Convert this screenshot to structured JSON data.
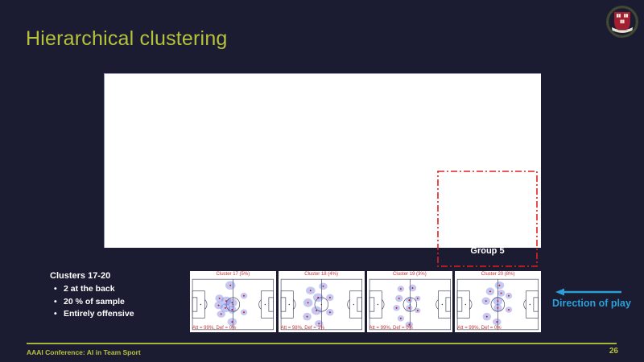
{
  "slide": {
    "title": "Hierarchical clustering",
    "footer": "AAAI Conference: AI in Team Sport",
    "page_number": "26"
  },
  "logo": {
    "name": "harvard-crest",
    "banner_text": "HARVARD"
  },
  "annotation": {
    "group_label": "Group 5",
    "direction_label": "Direction of play"
  },
  "notes": {
    "heading": "Clusters 17-20",
    "bullets": [
      "2 at the back",
      "20 % of sample",
      "Entirely offensive"
    ]
  },
  "colors": {
    "background": "#1b1b31",
    "accent_yellow": "#b6c23c",
    "annotation_red": "#e02020",
    "direction_blue": "#2d9fd8",
    "blob_blue": "#5058d8",
    "panel_text_red": "#c23434",
    "harvard_crimson": "#a41e32"
  },
  "chart_data": {
    "type": "heatmap",
    "description": "Four soccer-pitch player-position heatmaps, blue density blobs with red centroids, attack direction left",
    "panels": [
      {
        "title": "Cluster 17 (5%)",
        "stats": "Att = 99%, Def = 0%",
        "blobs": [
          [
            47,
            9,
            6,
            5
          ],
          [
            63,
            21,
            4,
            3.5
          ],
          [
            34,
            24,
            5,
            4.5
          ],
          [
            42,
            27,
            6,
            5
          ],
          [
            49,
            29,
            6,
            5
          ],
          [
            33,
            32,
            5,
            4.5
          ],
          [
            41,
            35,
            6,
            5
          ],
          [
            49,
            37,
            5,
            4.5
          ],
          [
            63,
            40,
            4,
            3.5
          ],
          [
            36,
            42,
            5,
            4
          ],
          [
            49,
            51,
            5.5,
            4.5
          ]
        ]
      },
      {
        "title": "Cluster 18 (4%)",
        "stats": "Att = 98%, Def = 1%",
        "blobs": [
          [
            52,
            10,
            5,
            4
          ],
          [
            37,
            15,
            5.5,
            4.5
          ],
          [
            46,
            23,
            6,
            5
          ],
          [
            60,
            23,
            4.5,
            4
          ],
          [
            34,
            29,
            5.5,
            5
          ],
          [
            44,
            38,
            6,
            5
          ],
          [
            60,
            40,
            4.5,
            4
          ],
          [
            33,
            45,
            5,
            4.5
          ],
          [
            47,
            53,
            5,
            4
          ]
        ]
      },
      {
        "title": "Cluster 19 (3%)",
        "stats": "Att = 99%, Def = 0%",
        "blobs": [
          [
            39,
            13,
            4,
            3.5
          ],
          [
            53,
            12,
            4.5,
            4
          ],
          [
            37,
            24,
            4.5,
            4
          ],
          [
            49,
            26,
            4,
            3.5
          ],
          [
            59,
            24,
            3.5,
            3
          ],
          [
            34,
            35,
            4,
            3.5
          ],
          [
            49,
            35,
            4,
            3.5
          ],
          [
            59,
            38,
            3.5,
            3
          ],
          [
            39,
            47,
            4,
            3.5
          ],
          [
            49,
            54,
            4.5,
            3.5
          ]
        ]
      },
      {
        "title": "Cluster 20 (8%)",
        "stats": "Att = 99%, Def = 0%",
        "blobs": [
          [
            52,
            9,
            5.5,
            4.5
          ],
          [
            41,
            16,
            5,
            4.5
          ],
          [
            54,
            18,
            4.5,
            4
          ],
          [
            63,
            21,
            4,
            3.5
          ],
          [
            36,
            27,
            5,
            4.5
          ],
          [
            50,
            27,
            5.5,
            5
          ],
          [
            50,
            35,
            5,
            4.5
          ],
          [
            63,
            37,
            4,
            3.5
          ],
          [
            37,
            45,
            5,
            4.5
          ],
          [
            49,
            51,
            5,
            4
          ]
        ]
      }
    ]
  }
}
